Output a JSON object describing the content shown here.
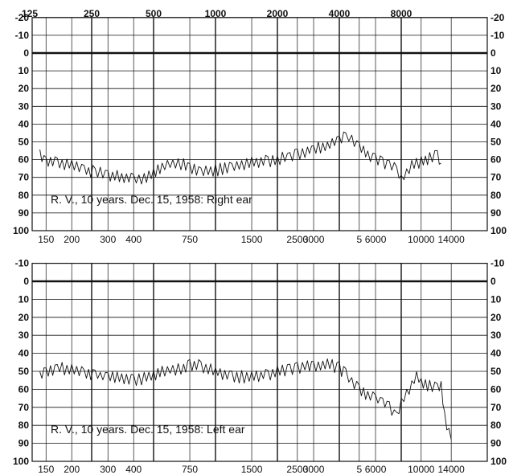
{
  "chart_data": [
    {
      "type": "line",
      "title": "",
      "caption": "R. V., 10 years. Dec. 15, 1958: Right ear",
      "xlabel": "",
      "ylabel": "",
      "x_scale": "log",
      "xlim": [
        100,
        16000
      ],
      "ylim": [
        -20,
        100
      ],
      "y_inverted": true,
      "grid": true,
      "top_ticks": [
        "125",
        "250",
        "500",
        "1000",
        "2000",
        "4000",
        "8000"
      ],
      "bottom_ticks": [
        "150",
        "200",
        "300",
        "400",
        "750",
        "1500",
        "2500",
        "3000",
        "5",
        "6000",
        "10000",
        "14000"
      ],
      "y_ticks": [
        "-20",
        "-10",
        "0",
        "10",
        "20",
        "30",
        "40",
        "50",
        "60",
        "70",
        "80",
        "90",
        "100"
      ],
      "series": [
        {
          "x": [
            140,
            150,
            170,
            200,
            230,
            260,
            300,
            350,
            400,
            450,
            500,
            550,
            620,
            700,
            750,
            850,
            1000,
            1200,
            1500,
            1800,
            2000,
            2300,
            2500,
            2800,
            3000,
            3500,
            4000,
            4300,
            4600,
            5000,
            5500,
            6000,
            6500,
            7000,
            7600,
            8000,
            8500,
            9000,
            10000,
            11000,
            12000,
            12500
          ],
          "y": [
            57,
            61,
            62,
            63,
            66,
            67,
            69,
            70,
            71,
            70,
            68,
            64,
            62,
            63,
            65,
            67,
            66,
            64,
            62,
            61,
            60,
            58,
            57,
            55,
            54,
            52,
            49,
            47,
            48,
            53,
            57,
            60,
            62,
            63,
            66,
            71,
            67,
            63,
            61,
            59,
            58,
            62
          ]
        }
      ]
    },
    {
      "type": "line",
      "title": "",
      "caption": "R. V., 10 years. Dec. 15, 1958: Left ear",
      "xlabel": "",
      "ylabel": "",
      "x_scale": "log",
      "xlim": [
        100,
        16000
      ],
      "ylim": [
        -10,
        100
      ],
      "y_inverted": true,
      "grid": true,
      "top_ticks": [],
      "bottom_ticks": [
        "150",
        "200",
        "300",
        "400",
        "750",
        "1500",
        "2500",
        "3000",
        "5",
        "6000",
        "10000",
        "14000"
      ],
      "y_ticks": [
        "-10",
        "0",
        "10",
        "20",
        "30",
        "40",
        "50",
        "60",
        "70",
        "80",
        "90",
        "100"
      ],
      "series": [
        {
          "x": [
            140,
            150,
            170,
            200,
            230,
            260,
            300,
            350,
            400,
            450,
            500,
            550,
            620,
            700,
            750,
            850,
            1000,
            1200,
            1500,
            1800,
            2000,
            2300,
            2500,
            2800,
            3000,
            3500,
            4000,
            4300,
            4600,
            5000,
            5500,
            6000,
            6500,
            7000,
            7600,
            8000,
            8500,
            9000,
            9500,
            10000,
            11000,
            12000,
            12500,
            13000,
            14000
          ],
          "y": [
            52,
            50,
            48,
            49,
            51,
            52,
            53,
            54,
            55,
            54,
            52,
            50,
            49,
            48,
            47,
            47,
            50,
            53,
            53,
            52,
            50,
            49,
            48,
            47,
            47,
            46,
            48,
            52,
            56,
            60,
            63,
            65,
            67,
            70,
            75,
            68,
            62,
            58,
            52,
            56,
            58,
            60,
            58,
            75,
            88
          ]
        }
      ]
    }
  ]
}
